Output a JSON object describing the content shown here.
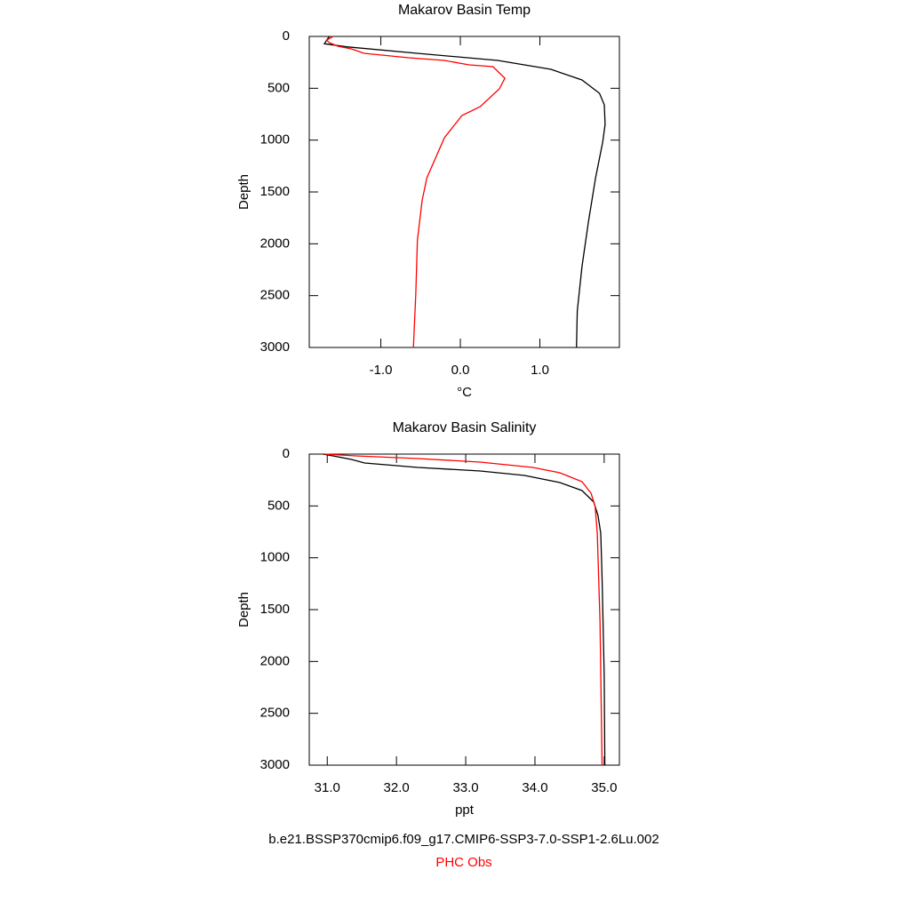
{
  "charts": [
    {
      "chart_data": {
        "type": "line",
        "title": "Makarov Basin Temp",
        "xlabel": "°C",
        "ylabel": "Depth",
        "xlim": [
          -1.9,
          2.0
        ],
        "xticks": [
          {
            "value": -1,
            "label": "-1.0"
          },
          {
            "value": 0,
            "label": "0.0"
          },
          {
            "value": 1,
            "label": "1.0"
          }
        ],
        "ylim": [
          0,
          3000
        ],
        "yticks": [
          0,
          500,
          1000,
          1500,
          2000,
          2500,
          3000
        ],
        "y_reversed": true,
        "series": [
          {
            "color": "#000000",
            "x": [
              -1.65,
              -1.71,
              -1.43,
              -0.54,
              0.47,
              1.14,
              1.53,
              1.75,
              1.81,
              1.82,
              1.79,
              1.7,
              1.61,
              1.53,
              1.47,
              1.46
            ],
            "y": [
              0,
              70,
              100,
              163,
              231,
              317,
              420,
              549,
              660,
              849,
              1020,
              1363,
              1791,
              2220,
              2648,
              3000
            ]
          },
          {
            "color": "#ff0000",
            "x": [
              -1.6,
              -1.68,
              -1.65,
              -1.54,
              -1.37,
              -1.21,
              -0.65,
              -0.2,
              0.11,
              0.41,
              0.56,
              0.49,
              0.25,
              0.02,
              -0.2,
              -0.42,
              -0.48,
              -0.54,
              -0.56,
              -0.59
            ],
            "y": [
              0,
              34,
              60,
              94,
              120,
              163,
              206,
              231,
              274,
              291,
              403,
              506,
              677,
              763,
              977,
              1363,
              1577,
              1963,
              2477,
              3000
            ]
          }
        ]
      }
    },
    {
      "chart_data": {
        "type": "line",
        "title": "Makarov Basin Salinity",
        "xlabel": "ppt",
        "ylabel": "Depth",
        "xlim": [
          30.74,
          35.22
        ],
        "xticks": [
          {
            "value": 31,
            "label": "31.0"
          },
          {
            "value": 32,
            "label": "32.0"
          },
          {
            "value": 33,
            "label": "33.0"
          },
          {
            "value": 34,
            "label": "34.0"
          },
          {
            "value": 35,
            "label": "35.0"
          }
        ],
        "ylim": [
          0,
          3000
        ],
        "yticks": [
          0,
          500,
          1000,
          1500,
          2000,
          2500,
          3000
        ],
        "y_reversed": true,
        "series": [
          {
            "color": "#000000",
            "x": [
              30.94,
              31.15,
              31.35,
              31.54,
              32.31,
              33.21,
              33.85,
              34.36,
              34.68,
              34.85,
              34.91,
              34.95,
              34.97,
              35.0,
              35.01
            ],
            "y": [
              0,
              26,
              51,
              86,
              129,
              163,
              206,
              274,
              351,
              463,
              591,
              763,
              1191,
              2134,
              3000
            ]
          },
          {
            "color": "#ff0000",
            "x": [
              30.96,
              31.41,
              32.31,
              33.21,
              33.97,
              34.36,
              34.68,
              34.81,
              34.87,
              34.9,
              34.94,
              34.97
            ],
            "y": [
              0,
              17,
              43,
              77,
              129,
              180,
              266,
              377,
              506,
              763,
              1620,
              3000
            ]
          }
        ]
      }
    }
  ],
  "legend": [
    {
      "name": "b.e21.BSSP370cmip6.f09_g17.CMIP6-SSP3-7.0-SSP1-2.6Lu.002",
      "color": "#000000"
    },
    {
      "name": "PHC Obs",
      "color": "#ff0000"
    }
  ]
}
